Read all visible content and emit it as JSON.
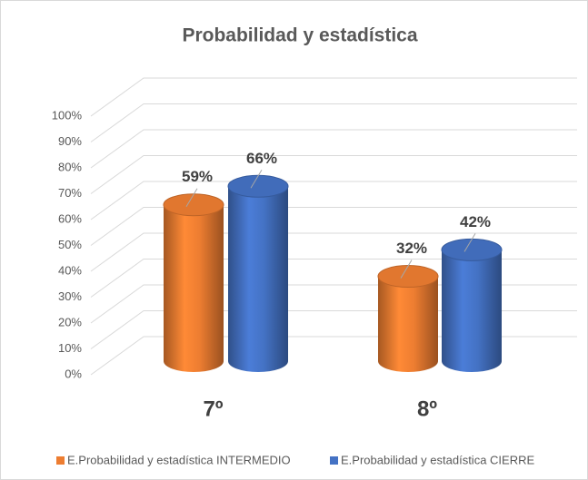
{
  "chart_data": {
    "type": "bar3d",
    "title": "Probabilidad y estadística",
    "categories": [
      "7º",
      "8º"
    ],
    "series": [
      {
        "name": "E.Probabilidad y estadística INTERMEDIO",
        "color": "#ed7d31",
        "values": [
          59,
          32
        ],
        "value_labels": [
          "59%",
          "32%"
        ]
      },
      {
        "name": "E.Probabilidad y estadística CIERRE",
        "color": "#4472c4",
        "values": [
          66,
          42
        ],
        "value_labels": [
          "66%",
          "42%"
        ]
      }
    ],
    "ylim": [
      0,
      100
    ],
    "yticks": [
      {
        "value": 0,
        "label": "0%"
      },
      {
        "value": 10,
        "label": "10%"
      },
      {
        "value": 20,
        "label": "20%"
      },
      {
        "value": 30,
        "label": "30%"
      },
      {
        "value": 40,
        "label": "40%"
      },
      {
        "value": 50,
        "label": "50%"
      },
      {
        "value": 60,
        "label": "60%"
      },
      {
        "value": 70,
        "label": "70%"
      },
      {
        "value": 80,
        "label": "80%"
      },
      {
        "value": 90,
        "label": "90%"
      },
      {
        "value": 100,
        "label": "100%"
      }
    ],
    "grid": true,
    "legend": "bottom"
  }
}
